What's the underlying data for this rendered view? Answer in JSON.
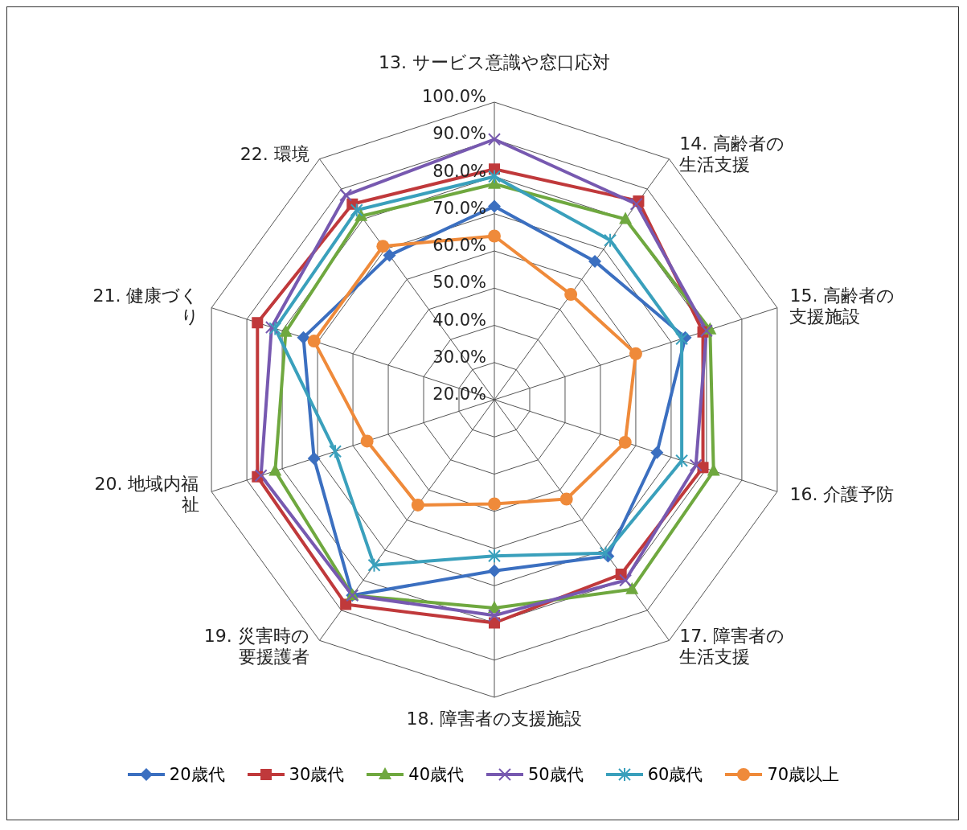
{
  "chart_data": {
    "type": "radar",
    "categories": [
      "13. サービス意識や窓口応対",
      "14. 高齢者の生活支援",
      "15. 高齢者の支援施設",
      "16. 介護予防",
      "17. 障害者の生活支援",
      "18. 障害者の支援施設",
      "19. 災害時の要援護者",
      "20. 地域内福祉",
      "21. 健康づくり",
      "22. 環境"
    ],
    "series": [
      {
        "name": "20歳代",
        "color": "#3b6fc0",
        "marker": "diamond",
        "values": [
          72,
          66,
          74,
          66,
          72,
          66,
          85,
          71,
          74,
          68
        ]
      },
      {
        "name": "30歳代",
        "color": "#c0393b",
        "marker": "square",
        "values": [
          82,
          86,
          79,
          79,
          78,
          80,
          88,
          87,
          87,
          85
        ]
      },
      {
        "name": "40歳代",
        "color": "#6fa83f",
        "marker": "triangle",
        "values": [
          78,
          80,
          81,
          82,
          83,
          76,
          85,
          82,
          79,
          81
        ]
      },
      {
        "name": "50歳代",
        "color": "#7759b0",
        "marker": "cross",
        "values": [
          90,
          85,
          80,
          77,
          80,
          78,
          85,
          86,
          83,
          88
        ]
      },
      {
        "name": "60歳代",
        "color": "#3aa0bc",
        "marker": "star",
        "values": [
          80,
          73,
          73,
          73,
          71,
          62,
          75,
          65,
          82,
          83
        ]
      },
      {
        "name": "70歳以上",
        "color": "#ef8a3a",
        "marker": "circle",
        "values": [
          64,
          55,
          60,
          57,
          53,
          48,
          55,
          56,
          71,
          71
        ]
      }
    ],
    "ylim": [
      20,
      100
    ],
    "yticks": [
      {
        "value": 20,
        "label": "20.0%"
      },
      {
        "value": 30,
        "label": "30.0%"
      },
      {
        "value": 40,
        "label": "40.0%"
      },
      {
        "value": 50,
        "label": "50.0%"
      },
      {
        "value": 60,
        "label": "60.0%"
      },
      {
        "value": 70,
        "label": "70.0%"
      },
      {
        "value": 80,
        "label": "80.0%"
      },
      {
        "value": 90,
        "label": "90.0%"
      },
      {
        "value": 100,
        "label": "100.0%"
      }
    ],
    "grid": true,
    "legend": "bottom"
  }
}
